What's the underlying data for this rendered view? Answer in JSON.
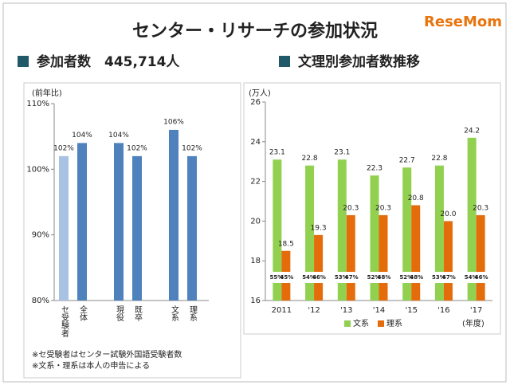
{
  "title": "センター・リサーチの参加状況",
  "logo": "ReseMom",
  "chart_data": [
    {
      "type": "bar",
      "heading": "参加者数　445,714人",
      "y_label": "(前年比)",
      "categories": [
        "セ受験者",
        "全体",
        null,
        "現役",
        "既卒",
        null,
        "文系",
        "理系"
      ],
      "values": [
        102,
        104,
        null,
        104,
        102,
        null,
        106,
        102
      ],
      "value_labels": [
        "102%",
        "104%",
        null,
        "104%",
        "102%",
        null,
        "106%",
        "102%"
      ],
      "colors": [
        "#a7c2e3",
        "#4f81bd",
        null,
        "#4f81bd",
        "#4f81bd",
        null,
        "#4f81bd",
        "#4f81bd"
      ],
      "ylim": [
        80,
        110
      ],
      "yticks": [
        {
          "value": 80,
          "label": "80%"
        },
        {
          "value": 90,
          "label": "90%"
        },
        {
          "value": 100,
          "label": "100%"
        },
        {
          "value": 110,
          "label": "110%"
        }
      ],
      "notes": [
        "※セ受験者はセンター試験外国語受験者数",
        "※文系・理系は本人の申告による"
      ]
    },
    {
      "type": "grouped-bar",
      "heading": "文理別参加者数推移",
      "y_label": "(万人)",
      "x_label": "(年度)",
      "categories": [
        "2011",
        "'12",
        "'13",
        "'14",
        "'15",
        "'16",
        "'17"
      ],
      "series": [
        {
          "name": "文系",
          "color": "#92d050",
          "values": [
            23.1,
            22.8,
            23.1,
            22.3,
            22.7,
            22.8,
            24.2
          ],
          "shares": [
            55,
            54,
            53,
            52,
            52,
            53,
            54
          ],
          "share_labels": [
            "55%",
            "54%",
            "53%",
            "52%",
            "52%",
            "53%",
            "54%"
          ]
        },
        {
          "name": "理系",
          "color": "#e46c0a",
          "values": [
            18.5,
            19.3,
            20.3,
            20.3,
            20.8,
            20.0,
            20.3
          ],
          "value_labels": [
            "18.5",
            "19.3",
            "20.3",
            "20.3",
            "20.8",
            "20.0",
            "20.3"
          ],
          "shares": [
            45,
            46,
            47,
            48,
            48,
            47,
            46
          ],
          "share_labels": [
            "45%",
            "46%",
            "47%",
            "48%",
            "48%",
            "47%",
            "46%"
          ]
        }
      ],
      "ylim": [
        16,
        26
      ],
      "yticks": [
        16,
        18,
        20,
        22,
        24,
        26
      ]
    }
  ]
}
